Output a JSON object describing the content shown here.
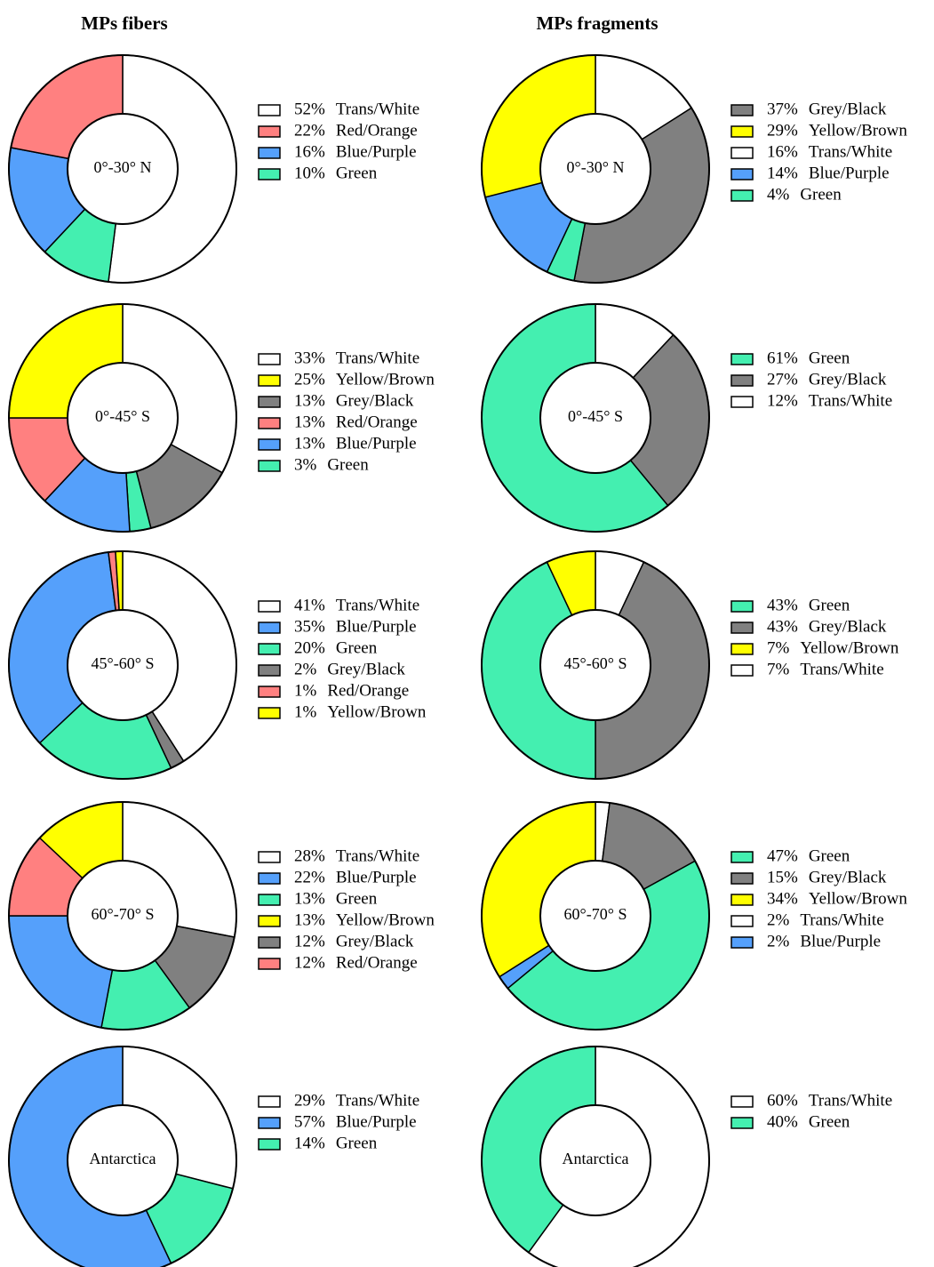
{
  "columns": [
    "MPs fibers",
    "MPs fragments"
  ],
  "chart_data": [
    {
      "type": "donut",
      "center_label": "0°-30° N",
      "categories": [
        "Trans/White",
        "Red/Orange",
        "Blue/Purple",
        "Green"
      ],
      "values": [
        52,
        22,
        16,
        10
      ],
      "value_labels": [
        "52%",
        "22%",
        "16%",
        "10%"
      ],
      "colors": [
        "#ffffff",
        "#ff8080",
        "#55a0fb",
        "#44efb0"
      ]
    },
    {
      "type": "donut",
      "center_label": "0°-45° S",
      "categories": [
        "Trans/White",
        "Yellow/Brown",
        "Grey/Black",
        "Red/Orange",
        "Blue/Purple",
        "Green"
      ],
      "values": [
        33,
        25,
        13,
        13,
        13,
        3
      ],
      "value_labels": [
        "33%",
        "25%",
        "13%",
        "13%",
        "13%",
        "3%"
      ],
      "colors": [
        "#ffffff",
        "#ffff00",
        "#808080",
        "#ff8080",
        "#55a0fb",
        "#44efb0"
      ]
    },
    {
      "type": "donut",
      "center_label": "45°-60° S",
      "categories": [
        "Trans/White",
        "Blue/Purple",
        "Green",
        "Grey/Black",
        "Red/Orange",
        "Yellow/Brown"
      ],
      "values": [
        41,
        35,
        20,
        2,
        1,
        1
      ],
      "value_labels": [
        "41%",
        "35%",
        "20%",
        "2%",
        "1%",
        "1%"
      ],
      "colors": [
        "#ffffff",
        "#55a0fb",
        "#44efb0",
        "#808080",
        "#ff8080",
        "#ffff00"
      ]
    },
    {
      "type": "donut",
      "center_label": "60°-70° S",
      "categories": [
        "Trans/White",
        "Blue/Purple",
        "Green",
        "Yellow/Brown",
        "Grey/Black",
        "Red/Orange"
      ],
      "values": [
        28,
        22,
        13,
        13,
        12,
        12
      ],
      "value_labels": [
        "28%",
        "22%",
        "13%",
        "13%",
        "12%",
        "12%"
      ],
      "colors": [
        "#ffffff",
        "#55a0fb",
        "#44efb0",
        "#ffff00",
        "#808080",
        "#ff8080"
      ]
    },
    {
      "type": "donut",
      "center_label": "Antarctica",
      "categories": [
        "Trans/White",
        "Blue/Purple",
        "Green"
      ],
      "values": [
        29,
        57,
        14
      ],
      "value_labels": [
        "29%",
        "57%",
        "14%"
      ],
      "colors": [
        "#ffffff",
        "#55a0fb",
        "#44efb0"
      ]
    },
    {
      "type": "donut",
      "center_label": "0°-30° N",
      "categories": [
        "Grey/Black",
        "Yellow/Brown",
        "Trans/White",
        "Blue/Purple",
        "Green"
      ],
      "values": [
        37,
        29,
        16,
        14,
        4
      ],
      "value_labels": [
        "37%",
        "29%",
        "16%",
        "14%",
        "4%"
      ],
      "colors": [
        "#808080",
        "#ffff00",
        "#ffffff",
        "#55a0fb",
        "#44efb0"
      ]
    },
    {
      "type": "donut",
      "center_label": "0°-45° S",
      "categories": [
        "Green",
        "Grey/Black",
        "Trans/White"
      ],
      "values": [
        61,
        27,
        12
      ],
      "value_labels": [
        "61%",
        "27%",
        "12%"
      ],
      "colors": [
        "#44efb0",
        "#808080",
        "#ffffff"
      ]
    },
    {
      "type": "donut",
      "center_label": "45°-60° S",
      "categories": [
        "Green",
        "Grey/Black",
        "Yellow/Brown",
        "Trans/White"
      ],
      "values": [
        43,
        43,
        7,
        7
      ],
      "value_labels": [
        "43%",
        "43%",
        "7%",
        "7%"
      ],
      "colors": [
        "#44efb0",
        "#808080",
        "#ffff00",
        "#ffffff"
      ]
    },
    {
      "type": "donut",
      "center_label": "60°-70° S",
      "categories": [
        "Green",
        "Grey/Black",
        "Yellow/Brown",
        "Trans/White",
        "Blue/Purple"
      ],
      "values": [
        47,
        15,
        34,
        2,
        2
      ],
      "value_labels": [
        "47%",
        "15%",
        "34%",
        "2%",
        "2%"
      ],
      "colors": [
        "#44efb0",
        "#808080",
        "#ffff00",
        "#ffffff",
        "#55a0fb"
      ]
    },
    {
      "type": "donut",
      "center_label": "Antarctica",
      "categories": [
        "Trans/White",
        "Green"
      ],
      "values": [
        60,
        40
      ],
      "value_labels": [
        "60%",
        "40%"
      ],
      "colors": [
        "#ffffff",
        "#44efb0"
      ]
    }
  ]
}
